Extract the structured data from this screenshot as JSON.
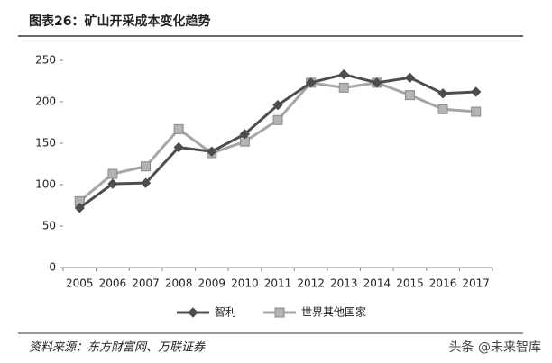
{
  "chart_data": {
    "type": "line",
    "title": "图表26：矿山开采成本变化趋势",
    "source": "资料来源：东方财富网、万联证券",
    "watermark": "头条 @未来智库",
    "categories": [
      "2005",
      "2006",
      "2007",
      "2008",
      "2009",
      "2010",
      "2011",
      "2012",
      "2013",
      "2014",
      "2015",
      "2016",
      "2017"
    ],
    "series": [
      {
        "name": "智利",
        "color": "#4d4d4d",
        "marker": "diamond",
        "values": [
          72,
          101,
          102,
          145,
          140,
          161,
          196,
          223,
          233,
          223,
          229,
          210,
          212
        ]
      },
      {
        "name": "世界其他国家",
        "color": "#a6a6a6",
        "marker": "square",
        "values": [
          80,
          113,
          122,
          167,
          138,
          152,
          178,
          223,
          217,
          223,
          208,
          191,
          188
        ]
      }
    ],
    "ylim": [
      0,
      250
    ],
    "yticks": [
      0,
      50,
      100,
      150,
      200,
      250
    ],
    "grid": false,
    "legend": "bottom"
  }
}
